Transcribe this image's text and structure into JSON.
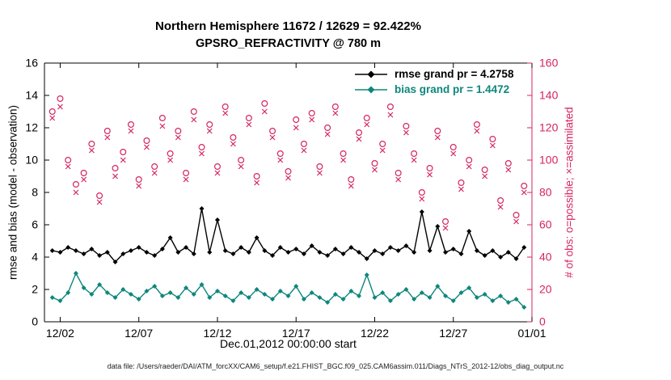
{
  "figure": {
    "footer": "data file: /Users/raeder/DAI/ATM_forcXX/CAM6_setup/f.e21.FHIST_BGC.f09_025.CAM6assim.011/Diags_NTrS_2012-12/obs_diag_output.nc"
  },
  "chart_data": {
    "type": "line",
    "title": "Northern Hemisphere 11672 / 12629 = 92.422%",
    "subtitle": "GPSRO_REFRACTIVITY @ 780 m",
    "xlabel": "Dec.01,2012 00:00:00 start",
    "legend_position": "top-right",
    "grid": false,
    "x_axis": {
      "min": 1,
      "max": 32,
      "ticks": [
        2,
        7,
        12,
        17,
        22,
        27,
        32
      ],
      "tick_labels": [
        "12/02",
        "12/07",
        "12/12",
        "12/17",
        "12/22",
        "12/27",
        "01/01"
      ],
      "color": "#000000"
    },
    "left_axis": {
      "label": "rmse and bias (model - observation)",
      "min": 0,
      "max": 16,
      "ticks": [
        0,
        2,
        4,
        6,
        8,
        10,
        12,
        14,
        16
      ],
      "color": "#000000"
    },
    "right_axis": {
      "label": "# of obs: o=possible; ×=assimilated",
      "min": 0,
      "max": 160,
      "ticks": [
        0,
        20,
        40,
        60,
        80,
        100,
        120,
        140,
        160
      ],
      "color": "#d5255e"
    },
    "x": [
      1.5,
      2,
      2.5,
      3,
      3.5,
      4,
      4.5,
      5,
      5.5,
      6,
      6.5,
      7,
      7.5,
      8,
      8.5,
      9,
      9.5,
      10,
      10.5,
      11,
      11.5,
      12,
      12.5,
      13,
      13.5,
      14,
      14.5,
      15,
      15.5,
      16,
      16.5,
      17,
      17.5,
      18,
      18.5,
      19,
      19.5,
      20,
      20.5,
      21,
      21.5,
      22,
      22.5,
      23,
      23.5,
      24,
      24.5,
      25,
      25.5,
      26,
      26.5,
      27,
      27.5,
      28,
      28.5,
      29,
      29.5,
      30,
      30.5,
      31,
      31.5
    ],
    "series": [
      {
        "name": "rmse grand pr = 4.2758",
        "type": "line",
        "marker": "diamond",
        "axis": "left",
        "color": "#000000",
        "in_legend": true,
        "values": [
          4.4,
          4.3,
          4.6,
          4.4,
          4.2,
          4.5,
          4.1,
          4.3,
          3.7,
          4.2,
          4.4,
          4.6,
          4.3,
          4.1,
          4.5,
          5.2,
          4.3,
          4.6,
          4.2,
          7.0,
          4.3,
          6.3,
          4.4,
          4.2,
          4.6,
          4.3,
          5.2,
          4.4,
          4.1,
          4.6,
          4.3,
          4.5,
          4.2,
          4.7,
          4.3,
          4.1,
          4.5,
          4.2,
          4.6,
          4.3,
          3.9,
          4.4,
          4.2,
          4.6,
          4.4,
          4.7,
          4.3,
          6.8,
          4.4,
          5.9,
          4.3,
          4.5,
          4.2,
          5.6,
          4.4,
          4.1,
          4.4,
          4.0,
          4.3,
          3.9,
          4.6
        ]
      },
      {
        "name": "bias grand pr = 1.4472",
        "type": "line",
        "marker": "diamond",
        "axis": "left",
        "color": "#0e877c",
        "in_legend": true,
        "values": [
          1.5,
          1.3,
          1.8,
          3.0,
          2.1,
          1.7,
          2.3,
          1.8,
          1.5,
          2.0,
          1.7,
          1.4,
          1.9,
          2.2,
          1.6,
          1.8,
          1.5,
          2.1,
          1.7,
          2.3,
          1.5,
          1.9,
          1.6,
          1.3,
          1.8,
          1.5,
          2.0,
          1.7,
          1.4,
          1.9,
          1.6,
          2.2,
          1.4,
          1.8,
          1.5,
          1.2,
          1.7,
          1.4,
          1.9,
          1.6,
          2.9,
          1.5,
          1.8,
          1.3,
          1.7,
          2.0,
          1.4,
          1.8,
          1.5,
          2.2,
          1.6,
          1.3,
          1.8,
          2.1,
          1.5,
          1.7,
          1.3,
          1.6,
          1.2,
          1.4,
          0.9
        ]
      },
      {
        "name": "possible",
        "type": "scatter",
        "marker": "circle",
        "axis": "right",
        "color": "#d5255e",
        "in_legend": false,
        "values": [
          130,
          138,
          100,
          85,
          92,
          110,
          78,
          118,
          95,
          105,
          122,
          88,
          112,
          96,
          126,
          104,
          118,
          92,
          130,
          108,
          122,
          96,
          133,
          114,
          100,
          126,
          90,
          135,
          118,
          104,
          93,
          125,
          110,
          129,
          96,
          120,
          133,
          104,
          88,
          117,
          126,
          98,
          110,
          133,
          92,
          121,
          104,
          80,
          95,
          118,
          62,
          108,
          86,
          100,
          122,
          94,
          113,
          75,
          98,
          66,
          84
        ]
      },
      {
        "name": "assimilated",
        "type": "scatter",
        "marker": "x",
        "axis": "right",
        "color": "#d5255e",
        "in_legend": false,
        "values": [
          126,
          133,
          96,
          80,
          88,
          106,
          74,
          114,
          90,
          100,
          118,
          84,
          108,
          92,
          121,
          100,
          114,
          88,
          125,
          104,
          118,
          92,
          129,
          110,
          96,
          122,
          86,
          130,
          114,
          100,
          89,
          120,
          106,
          125,
          92,
          116,
          129,
          100,
          84,
          113,
          122,
          94,
          106,
          128,
          88,
          117,
          100,
          76,
          91,
          114,
          58,
          104,
          82,
          96,
          118,
          90,
          109,
          71,
          94,
          62,
          80
        ]
      }
    ]
  }
}
